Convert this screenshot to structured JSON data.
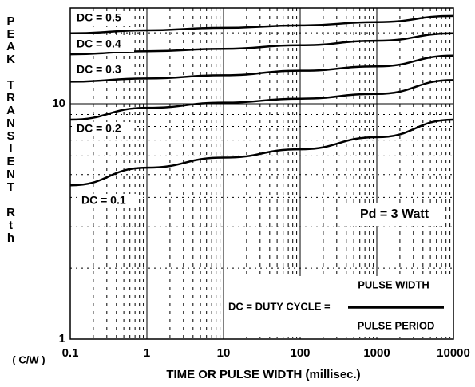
{
  "chart_data": {
    "type": "line",
    "ylabel": "PEAK TRANSIENT Rth",
    "y_unit": "( C/W )",
    "xlabel": "TIME OR PULSE WIDTH (millisec.)",
    "x": [
      0.1,
      1,
      10,
      100,
      1000,
      10000
    ],
    "series": [
      {
        "name": "DC = 0.5",
        "color": "#000000",
        "values": [
          19.9,
          20.5,
          21.0,
          21.5,
          22.2,
          23.6
        ]
      },
      {
        "name": "DC = 0.4",
        "color": "#000000",
        "values": [
          16.2,
          16.7,
          17.1,
          17.7,
          18.5,
          19.9
        ]
      },
      {
        "name": "DC = 0.3",
        "color": "#000000",
        "values": [
          12.4,
          12.8,
          13.2,
          13.8,
          14.4,
          16.0
        ]
      },
      {
        "name": "DC = 0.2",
        "color": "#000000",
        "values": [
          8.55,
          9.6,
          10.1,
          10.5,
          11.0,
          12.6
        ]
      },
      {
        "name": "DC = 0.1",
        "color": "#000000",
        "values": [
          4.5,
          5.35,
          5.9,
          6.4,
          7.2,
          8.55
        ]
      }
    ],
    "xlim": [
      0.1,
      10000
    ],
    "ylim": [
      1,
      25.5
    ],
    "xticks": [
      0.1,
      1,
      10,
      100,
      1000,
      10000
    ],
    "yticks": [
      1,
      10
    ],
    "xscale": "log",
    "yscale": "log",
    "grid": true,
    "annotations": {
      "power": "Pd = 3 Watt",
      "duty": "DC = DUTY CYCLE =",
      "numerator": "PULSE WIDTH",
      "denominator": "PULSE PERIOD"
    }
  }
}
